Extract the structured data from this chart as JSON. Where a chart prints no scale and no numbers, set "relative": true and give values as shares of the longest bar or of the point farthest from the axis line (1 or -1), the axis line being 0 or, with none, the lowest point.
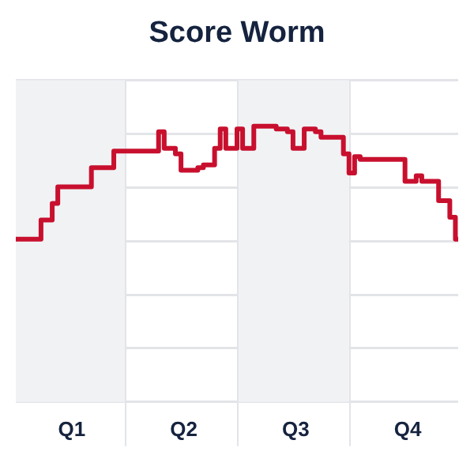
{
  "chart_data": {
    "type": "step",
    "title": "Score Worm",
    "relative": true,
    "grid": "y",
    "categories": [
      null,
      null,
      null,
      null,
      null,
      null,
      null,
      null,
      null,
      null,
      "Q1",
      null,
      null,
      null,
      null,
      null,
      null,
      null,
      null,
      null,
      null,
      null,
      null,
      null,
      null,
      null,
      null,
      null,
      null,
      null,
      "Q2",
      null,
      null,
      null,
      null,
      null,
      null,
      null,
      null,
      null,
      null,
      null,
      null,
      null,
      null,
      null,
      null,
      null,
      null,
      null,
      "Q3",
      null,
      null,
      null,
      null,
      null,
      null,
      null,
      null,
      null,
      null,
      null,
      null,
      null,
      null,
      null,
      null,
      null,
      null,
      null,
      "Q4",
      null,
      null,
      null,
      null,
      null,
      null,
      null,
      null,
      null
    ],
    "series": [
      {
        "color": "#c8102e",
        "values": [
          0.59,
          0.59,
          0.59,
          0.59,
          0.59,
          0.66,
          0.66,
          0.72,
          0.78,
          0.78,
          0.78,
          0.78,
          0.78,
          0.78,
          0.85,
          0.85,
          0.85,
          0.85,
          0.91,
          0.91,
          0.91,
          0.91,
          0.91,
          0.91,
          0.91,
          0.91,
          0.98,
          0.92,
          0.92,
          0.9,
          0.84,
          0.84,
          0.84,
          0.85,
          0.86,
          0.86,
          0.92,
          0.99,
          0.92,
          0.92,
          0.99,
          0.92,
          0.92,
          1.0,
          1.0,
          1.0,
          1.0,
          0.99,
          0.99,
          0.98,
          0.92,
          0.92,
          0.99,
          0.99,
          0.98,
          0.96,
          0.96,
          0.96,
          0.96,
          0.9,
          0.83,
          0.89,
          0.88,
          0.88,
          0.88,
          0.88,
          0.88,
          0.88,
          0.88,
          0.88,
          0.8,
          0.8,
          0.82,
          0.8,
          0.8,
          0.8,
          0.73,
          0.73,
          0.67,
          0.59
        ]
      }
    ]
  }
}
